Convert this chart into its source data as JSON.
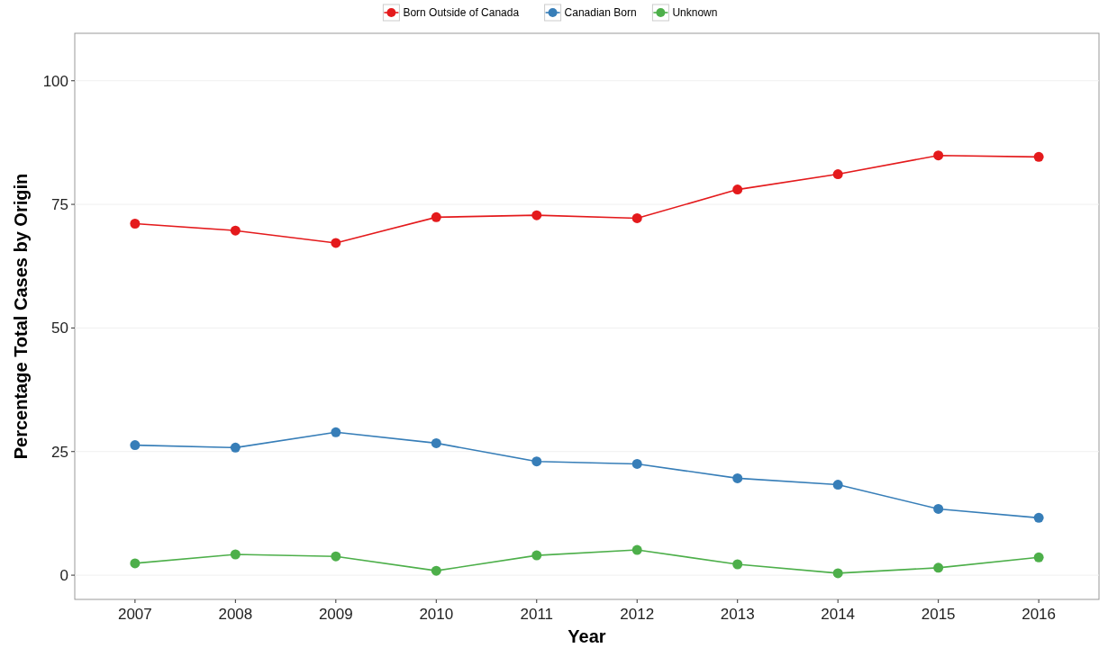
{
  "chart_data": {
    "type": "line",
    "xlabel": "Year",
    "ylabel": "Percentage Total Cases by Origin",
    "categories": [
      "2007",
      "2008",
      "2009",
      "2010",
      "2011",
      "2012",
      "2013",
      "2014",
      "2015",
      "2016"
    ],
    "series": [
      {
        "name": "Born Outside of Canada",
        "color": "#e41a1c",
        "values": [
          71.1,
          69.7,
          67.2,
          72.4,
          72.8,
          72.2,
          78.0,
          81.1,
          84.9,
          84.6
        ]
      },
      {
        "name": "Canadian Born",
        "color": "#377eb8",
        "values": [
          26.3,
          25.8,
          28.9,
          26.7,
          23.0,
          22.5,
          19.6,
          18.3,
          13.4,
          11.6
        ]
      },
      {
        "name": "Unknown",
        "color": "#4daf4a",
        "values": [
          2.4,
          4.2,
          3.8,
          0.9,
          4.0,
          5.1,
          2.2,
          0.4,
          1.5,
          3.6
        ]
      }
    ],
    "ylim": [
      -4.9,
      109.6
    ],
    "yticks": [
      0,
      25,
      50,
      75,
      100
    ],
    "grid": "y",
    "legend": "top",
    "marker": "circle",
    "line_style": "solid"
  }
}
